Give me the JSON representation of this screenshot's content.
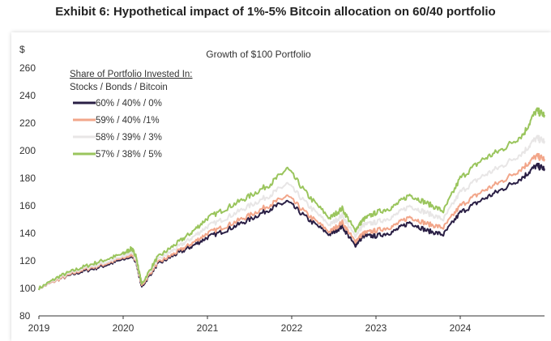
{
  "exhibit_title": "Exhibit 6: Hypothetical impact of 1%-5% Bitcoin allocation on 60/40 portfolio",
  "chart_data": {
    "type": "line",
    "title": "Growth of $100 Portfolio",
    "ylabel": "$",
    "xlabel": "",
    "ylim": [
      80,
      260
    ],
    "xlim": [
      2019,
      2025
    ],
    "y_ticks": [
      80,
      100,
      120,
      140,
      160,
      180,
      200,
      220,
      240,
      260
    ],
    "x_ticks": [
      2019,
      2020,
      2021,
      2022,
      2023,
      2024
    ],
    "grid": false,
    "legend_title": "Share of Portfolio Invested In:",
    "legend_subtitle": "Stocks / Bonds / Bitcoin",
    "legend_position": "top-left",
    "x": [
      2019.0,
      2019.25,
      2019.5,
      2019.75,
      2020.0,
      2020.1,
      2020.15,
      2020.22,
      2020.4,
      2020.6,
      2020.8,
      2021.0,
      2021.25,
      2021.5,
      2021.75,
      2021.95,
      2022.2,
      2022.45,
      2022.6,
      2022.75,
      2022.85,
      2023.0,
      2023.2,
      2023.4,
      2023.6,
      2023.8,
      2024.0,
      2024.25,
      2024.5,
      2024.75,
      2024.9,
      2025.0
    ],
    "series": [
      {
        "name": "60% / 40% / 0%",
        "color": "#2a1f45",
        "values": [
          100,
          107,
          112,
          116,
          121,
          124,
          120,
          101,
          117,
          124,
          130,
          137,
          143,
          150,
          158,
          163,
          150,
          139,
          145,
          131,
          138,
          138,
          141,
          148,
          142,
          139,
          155,
          164,
          172,
          181,
          189,
          187
        ]
      },
      {
        "name": "59% / 40% /1%",
        "color": "#f2a68a",
        "values": [
          100,
          107,
          113,
          117,
          122,
          125,
          121,
          102,
          118,
          125,
          132,
          140,
          146,
          153,
          161,
          167,
          153,
          141,
          148,
          134,
          140,
          142,
          145,
          152,
          147,
          144,
          160,
          170,
          178,
          188,
          196,
          194
        ]
      },
      {
        "name": "58% / 39% / 3%",
        "color": "#e8e6e6",
        "values": [
          100,
          108,
          114,
          118,
          123,
          127,
          122,
          103,
          120,
          128,
          136,
          145,
          152,
          160,
          168,
          176,
          160,
          146,
          153,
          138,
          146,
          148,
          152,
          160,
          155,
          150,
          170,
          181,
          189,
          199,
          209,
          207
        ]
      },
      {
        "name": "57% / 38% / 5%",
        "color": "#9ac55d",
        "values": [
          100,
          109,
          115,
          120,
          125,
          129,
          124,
          103,
          122,
          131,
          140,
          151,
          159,
          167,
          176,
          187,
          167,
          151,
          158,
          142,
          150,
          155,
          159,
          168,
          162,
          156,
          180,
          193,
          201,
          212,
          229,
          226
        ]
      }
    ]
  }
}
